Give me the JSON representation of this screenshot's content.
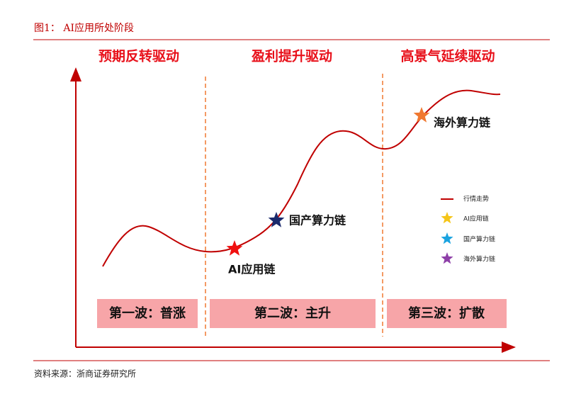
{
  "header": {
    "title": "图1：  AI应用所处阶段"
  },
  "phases": [
    "预期反转驱动",
    "盈利提升驱动",
    "高景气延续驱动"
  ],
  "waves": [
    "第一波：普涨",
    "第二波：主升",
    "第三波：扩散"
  ],
  "markers": [
    "AI应用链",
    "国产算力链",
    "海外算力链"
  ],
  "legend": [
    "行情走势",
    "AI应用链",
    "国产算力链",
    "海外算力链"
  ],
  "footer": {
    "source": "资料来源：浙商证券研究所"
  }
}
